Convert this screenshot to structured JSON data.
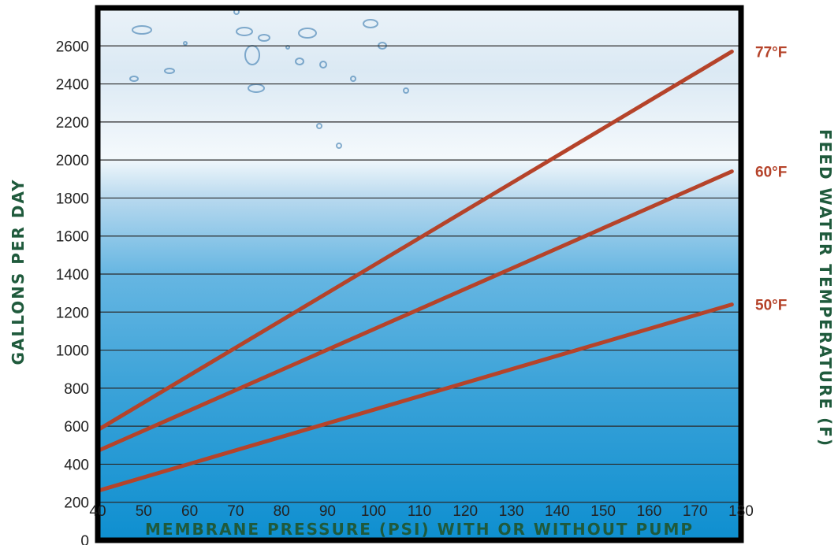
{
  "chart_data": {
    "type": "line",
    "title": "",
    "xlabel": "MEMBRANE PRESSURE (PSI) WITH OR WITHOUT PUMP",
    "ylabel": "GALLONS PER DAY",
    "y2label": "FEED WATER TEMPERATURE (F)",
    "xlim": [
      40,
      180
    ],
    "ylim": [
      0,
      2800
    ],
    "x_ticks": [
      40,
      50,
      60,
      70,
      80,
      90,
      100,
      110,
      120,
      130,
      140,
      150,
      160,
      170,
      180
    ],
    "x_tick_labels": [
      "40",
      "50",
      "60",
      "70",
      "80",
      "90",
      "100",
      "110",
      "120",
      "130",
      "140",
      "150",
      "160",
      "170",
      "180"
    ],
    "y_ticks": [
      0,
      200,
      400,
      600,
      800,
      1000,
      1200,
      1400,
      1600,
      1800,
      2000,
      2200,
      2400,
      2600
    ],
    "y_tick_labels": [
      "0",
      "200",
      "400",
      "600",
      "800",
      "1000",
      "1200",
      "1400",
      "1600",
      "1800",
      "2000",
      "2200",
      "2400",
      "2600"
    ],
    "grid": "horizontal",
    "legend": "right-side labels",
    "series": [
      {
        "name": "77°F",
        "x": [
          40,
          178
        ],
        "values": [
          580,
          2570
        ]
      },
      {
        "name": "60°F",
        "x": [
          40,
          178
        ],
        "values": [
          470,
          1940
        ]
      },
      {
        "name": "50°F",
        "x": [
          40,
          178
        ],
        "values": [
          260,
          1240
        ]
      }
    ],
    "colors": {
      "series": "#b5432a",
      "axis_title": "#1f5a3c",
      "frame": "#000000",
      "grid": "#2a2a2a",
      "water_top": "#ffffff",
      "water_bottom": "#0e8fd0"
    }
  }
}
